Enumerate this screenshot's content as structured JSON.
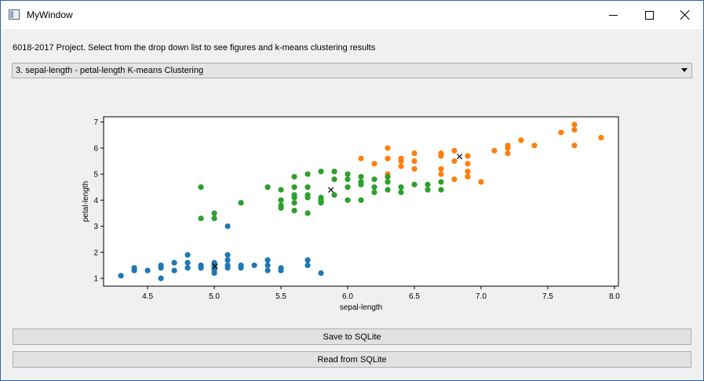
{
  "window": {
    "title": "MyWindow"
  },
  "instruction_text": "6018-2017 Project. Select from the drop down list to see figures and k-means clustering results",
  "dropdown": {
    "selected": "3. sepal-length - petal-length K-means Clustering"
  },
  "buttons": {
    "save_label": "Save to SQLite",
    "read_label": "Read from SQLite"
  },
  "chart_data": {
    "type": "scatter",
    "title": "",
    "xlabel": "sepal-length",
    "ylabel": "petal-length",
    "xlim": [
      4.17,
      8.03
    ],
    "ylim": [
      0.7,
      7.2
    ],
    "xticks": [
      "4.5",
      "5.0",
      "5.5",
      "6.0",
      "6.5",
      "7.0",
      "7.5",
      "8.0"
    ],
    "yticks": [
      "1",
      "2",
      "3",
      "4",
      "5",
      "6",
      "7"
    ],
    "grid": false,
    "series": [
      {
        "color": "#1f77b4",
        "points": [
          [
            4.3,
            1.1
          ],
          [
            4.4,
            1.3
          ],
          [
            4.4,
            1.4
          ],
          [
            4.5,
            1.3
          ],
          [
            4.6,
            1.0
          ],
          [
            4.6,
            1.4
          ],
          [
            4.6,
            1.5
          ],
          [
            4.7,
            1.3
          ],
          [
            4.7,
            1.6
          ],
          [
            4.8,
            1.4
          ],
          [
            4.8,
            1.6
          ],
          [
            4.8,
            1.9
          ],
          [
            4.9,
            1.4
          ],
          [
            4.9,
            1.5
          ],
          [
            5.0,
            1.2
          ],
          [
            5.0,
            1.3
          ],
          [
            5.0,
            1.4
          ],
          [
            5.0,
            1.5
          ],
          [
            5.0,
            1.6
          ],
          [
            5.1,
            1.4
          ],
          [
            5.1,
            1.5
          ],
          [
            5.1,
            1.7
          ],
          [
            5.1,
            1.9
          ],
          [
            5.1,
            3.0
          ],
          [
            5.2,
            1.4
          ],
          [
            5.2,
            1.5
          ],
          [
            5.3,
            1.5
          ],
          [
            5.4,
            1.3
          ],
          [
            5.4,
            1.5
          ],
          [
            5.4,
            1.7
          ],
          [
            5.5,
            1.3
          ],
          [
            5.5,
            1.4
          ],
          [
            5.7,
            1.5
          ],
          [
            5.7,
            1.7
          ],
          [
            5.8,
            1.2
          ]
        ]
      },
      {
        "color": "#ff7f0e",
        "points": [
          [
            6.1,
            5.6
          ],
          [
            6.2,
            5.4
          ],
          [
            6.3,
            5.0
          ],
          [
            6.3,
            5.6
          ],
          [
            6.3,
            6.0
          ],
          [
            6.4,
            5.3
          ],
          [
            6.4,
            5.5
          ],
          [
            6.4,
            5.6
          ],
          [
            6.5,
            5.2
          ],
          [
            6.5,
            5.5
          ],
          [
            6.5,
            5.8
          ],
          [
            6.7,
            5.0
          ],
          [
            6.7,
            5.2
          ],
          [
            6.7,
            5.7
          ],
          [
            6.7,
            5.8
          ],
          [
            6.8,
            4.8
          ],
          [
            6.8,
            5.5
          ],
          [
            6.8,
            5.9
          ],
          [
            6.9,
            4.9
          ],
          [
            6.9,
            5.1
          ],
          [
            6.9,
            5.4
          ],
          [
            6.9,
            5.7
          ],
          [
            7.0,
            4.7
          ],
          [
            7.1,
            5.9
          ],
          [
            7.2,
            5.8
          ],
          [
            7.2,
            6.0
          ],
          [
            7.2,
            6.1
          ],
          [
            7.3,
            6.3
          ],
          [
            7.4,
            6.1
          ],
          [
            7.6,
            6.6
          ],
          [
            7.7,
            6.1
          ],
          [
            7.7,
            6.7
          ],
          [
            7.7,
            6.9
          ],
          [
            7.9,
            6.4
          ]
        ]
      },
      {
        "color": "#2ca02c",
        "points": [
          [
            4.9,
            3.3
          ],
          [
            4.9,
            4.5
          ],
          [
            5.0,
            3.3
          ],
          [
            5.0,
            3.5
          ],
          [
            5.2,
            3.9
          ],
          [
            5.4,
            4.5
          ],
          [
            5.5,
            3.7
          ],
          [
            5.5,
            3.8
          ],
          [
            5.5,
            4.0
          ],
          [
            5.5,
            4.4
          ],
          [
            5.6,
            3.6
          ],
          [
            5.6,
            3.9
          ],
          [
            5.6,
            4.1
          ],
          [
            5.6,
            4.2
          ],
          [
            5.6,
            4.5
          ],
          [
            5.6,
            4.9
          ],
          [
            5.7,
            3.5
          ],
          [
            5.7,
            4.1
          ],
          [
            5.7,
            4.2
          ],
          [
            5.7,
            4.5
          ],
          [
            5.7,
            5.0
          ],
          [
            5.8,
            3.9
          ],
          [
            5.8,
            4.0
          ],
          [
            5.8,
            4.1
          ],
          [
            5.8,
            5.1
          ],
          [
            5.9,
            4.2
          ],
          [
            5.9,
            4.8
          ],
          [
            5.9,
            5.1
          ],
          [
            6.0,
            4.0
          ],
          [
            6.0,
            4.5
          ],
          [
            6.0,
            4.8
          ],
          [
            6.0,
            5.0
          ],
          [
            6.1,
            4.0
          ],
          [
            6.1,
            4.6
          ],
          [
            6.1,
            4.7
          ],
          [
            6.1,
            4.9
          ],
          [
            6.2,
            4.3
          ],
          [
            6.2,
            4.5
          ],
          [
            6.2,
            4.8
          ],
          [
            6.3,
            4.4
          ],
          [
            6.3,
            4.7
          ],
          [
            6.3,
            4.9
          ],
          [
            6.4,
            4.3
          ],
          [
            6.4,
            4.5
          ],
          [
            6.5,
            4.6
          ],
          [
            6.6,
            4.4
          ],
          [
            6.6,
            4.6
          ],
          [
            6.7,
            4.4
          ],
          [
            6.7,
            4.7
          ]
        ]
      }
    ],
    "centroids": [
      [
        5.006,
        1.462
      ],
      [
        6.839,
        5.678
      ],
      [
        5.874,
        4.393
      ]
    ]
  }
}
